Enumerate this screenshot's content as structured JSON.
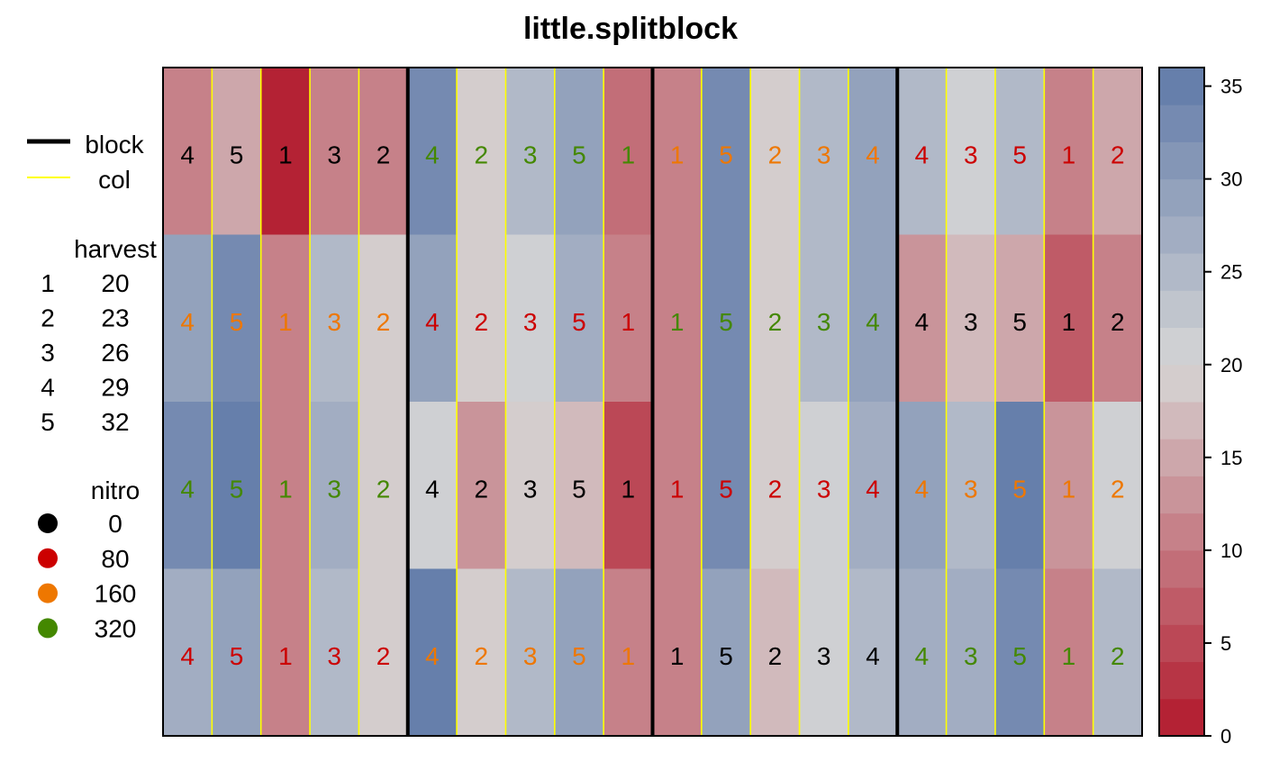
{
  "chart_data": {
    "type": "heatmap",
    "title": "little.splitblock",
    "legend": {
      "lines": [
        {
          "label": "block",
          "color": "#000000"
        },
        {
          "label": "col",
          "color": "#ffff00"
        }
      ],
      "harvest": {
        "title": "harvest",
        "items": [
          {
            "key": "1",
            "value": "20"
          },
          {
            "key": "2",
            "value": "23"
          },
          {
            "key": "3",
            "value": "26"
          },
          {
            "key": "4",
            "value": "29"
          },
          {
            "key": "5",
            "value": "32"
          }
        ]
      },
      "nitro": {
        "title": "nitro",
        "items": [
          {
            "label": "0",
            "color": "#000000"
          },
          {
            "label": "80",
            "color": "#cc0000"
          },
          {
            "label": "160",
            "color": "#ee7700"
          },
          {
            "label": "320",
            "color": "#448800"
          }
        ]
      }
    },
    "colorbar": {
      "range": [
        0,
        36
      ],
      "ticks": [
        0,
        5,
        10,
        15,
        20,
        25,
        30,
        35
      ],
      "levels": 18,
      "low_color": "#b2182b",
      "mid_color": "#d6d6d6",
      "high_color": "#5f79a8",
      "mid_value": 20
    },
    "grid": {
      "blocks": 4,
      "cols_per_block": 5,
      "rows": 4,
      "cells": [
        [
          {
            "label": "4",
            "nitro": "0",
            "value": 10
          },
          {
            "label": "5",
            "nitro": "0",
            "value": 14
          },
          {
            "label": "1",
            "nitro": "0",
            "value": 1
          },
          {
            "label": "3",
            "nitro": "0",
            "value": 10
          },
          {
            "label": "2",
            "nitro": "0",
            "value": 10
          },
          {
            "label": "4",
            "nitro": "320",
            "value": 32
          },
          {
            "label": "2",
            "nitro": "320",
            "value": 18
          },
          {
            "label": "3",
            "nitro": "320",
            "value": 24
          },
          {
            "label": "5",
            "nitro": "320",
            "value": 29
          },
          {
            "label": "1",
            "nitro": "320",
            "value": 8
          },
          {
            "label": "1",
            "nitro": "160",
            "value": 10
          },
          {
            "label": "5",
            "nitro": "160",
            "value": 32
          },
          {
            "label": "2",
            "nitro": "160",
            "value": 18
          },
          {
            "label": "3",
            "nitro": "160",
            "value": 24
          },
          {
            "label": "4",
            "nitro": "160",
            "value": 29
          },
          {
            "label": "4",
            "nitro": "80",
            "value": 24
          },
          {
            "label": "3",
            "nitro": "80",
            "value": 21
          },
          {
            "label": "5",
            "nitro": "80",
            "value": 24
          },
          {
            "label": "1",
            "nitro": "80",
            "value": 10
          },
          {
            "label": "2",
            "nitro": "80",
            "value": 15
          }
        ],
        [
          {
            "label": "4",
            "nitro": "160",
            "value": 28
          },
          {
            "label": "5",
            "nitro": "160",
            "value": 32
          },
          {
            "label": "1",
            "nitro": "160",
            "value": 10
          },
          {
            "label": "3",
            "nitro": "160",
            "value": 24
          },
          {
            "label": "2",
            "nitro": "160",
            "value": 18
          },
          {
            "label": "4",
            "nitro": "80",
            "value": 29
          },
          {
            "label": "2",
            "nitro": "80",
            "value": 18
          },
          {
            "label": "3",
            "nitro": "80",
            "value": 21
          },
          {
            "label": "5",
            "nitro": "80",
            "value": 27
          },
          {
            "label": "1",
            "nitro": "80",
            "value": 10
          },
          {
            "label": "1",
            "nitro": "320",
            "value": 10
          },
          {
            "label": "5",
            "nitro": "320",
            "value": 32
          },
          {
            "label": "2",
            "nitro": "320",
            "value": 18
          },
          {
            "label": "3",
            "nitro": "320",
            "value": 24
          },
          {
            "label": "4",
            "nitro": "320",
            "value": 29
          },
          {
            "label": "4",
            "nitro": "0",
            "value": 13
          },
          {
            "label": "3",
            "nitro": "0",
            "value": 16
          },
          {
            "label": "5",
            "nitro": "0",
            "value": 15
          },
          {
            "label": "1",
            "nitro": "0",
            "value": 7
          },
          {
            "label": "2",
            "nitro": "0",
            "value": 10
          }
        ],
        [
          {
            "label": "4",
            "nitro": "320",
            "value": 32
          },
          {
            "label": "5",
            "nitro": "320",
            "value": 35
          },
          {
            "label": "1",
            "nitro": "320",
            "value": 10
          },
          {
            "label": "3",
            "nitro": "320",
            "value": 27
          },
          {
            "label": "2",
            "nitro": "320",
            "value": 18
          },
          {
            "label": "4",
            "nitro": "0",
            "value": 21
          },
          {
            "label": "2",
            "nitro": "0",
            "value": 12
          },
          {
            "label": "3",
            "nitro": "0",
            "value": 18
          },
          {
            "label": "5",
            "nitro": "0",
            "value": 17
          },
          {
            "label": "1",
            "nitro": "0",
            "value": 4
          },
          {
            "label": "1",
            "nitro": "80",
            "value": 10
          },
          {
            "label": "5",
            "nitro": "80",
            "value": 32
          },
          {
            "label": "2",
            "nitro": "80",
            "value": 18
          },
          {
            "label": "3",
            "nitro": "80",
            "value": 21
          },
          {
            "label": "4",
            "nitro": "80",
            "value": 27
          },
          {
            "label": "4",
            "nitro": "160",
            "value": 29
          },
          {
            "label": "3",
            "nitro": "160",
            "value": 24
          },
          {
            "label": "5",
            "nitro": "160",
            "value": 35
          },
          {
            "label": "1",
            "nitro": "160",
            "value": 12
          },
          {
            "label": "2",
            "nitro": "160",
            "value": 21
          }
        ],
        [
          {
            "label": "4",
            "nitro": "80",
            "value": 27
          },
          {
            "label": "5",
            "nitro": "80",
            "value": 29
          },
          {
            "label": "1",
            "nitro": "80",
            "value": 10
          },
          {
            "label": "3",
            "nitro": "80",
            "value": 24
          },
          {
            "label": "2",
            "nitro": "80",
            "value": 18
          },
          {
            "label": "4",
            "nitro": "160",
            "value": 35
          },
          {
            "label": "2",
            "nitro": "160",
            "value": 18
          },
          {
            "label": "3",
            "nitro": "160",
            "value": 24
          },
          {
            "label": "5",
            "nitro": "160",
            "value": 29
          },
          {
            "label": "1",
            "nitro": "160",
            "value": 10
          },
          {
            "label": "1",
            "nitro": "0",
            "value": 10
          },
          {
            "label": "5",
            "nitro": "0",
            "value": 29
          },
          {
            "label": "2",
            "nitro": "0",
            "value": 16
          },
          {
            "label": "3",
            "nitro": "0",
            "value": 21
          },
          {
            "label": "4",
            "nitro": "0",
            "value": 24
          },
          {
            "label": "4",
            "nitro": "320",
            "value": 27
          },
          {
            "label": "3",
            "nitro": "320",
            "value": 27
          },
          {
            "label": "5",
            "nitro": "320",
            "value": 32
          },
          {
            "label": "1",
            "nitro": "320",
            "value": 10
          },
          {
            "label": "2",
            "nitro": "320",
            "value": 24
          }
        ]
      ]
    }
  }
}
